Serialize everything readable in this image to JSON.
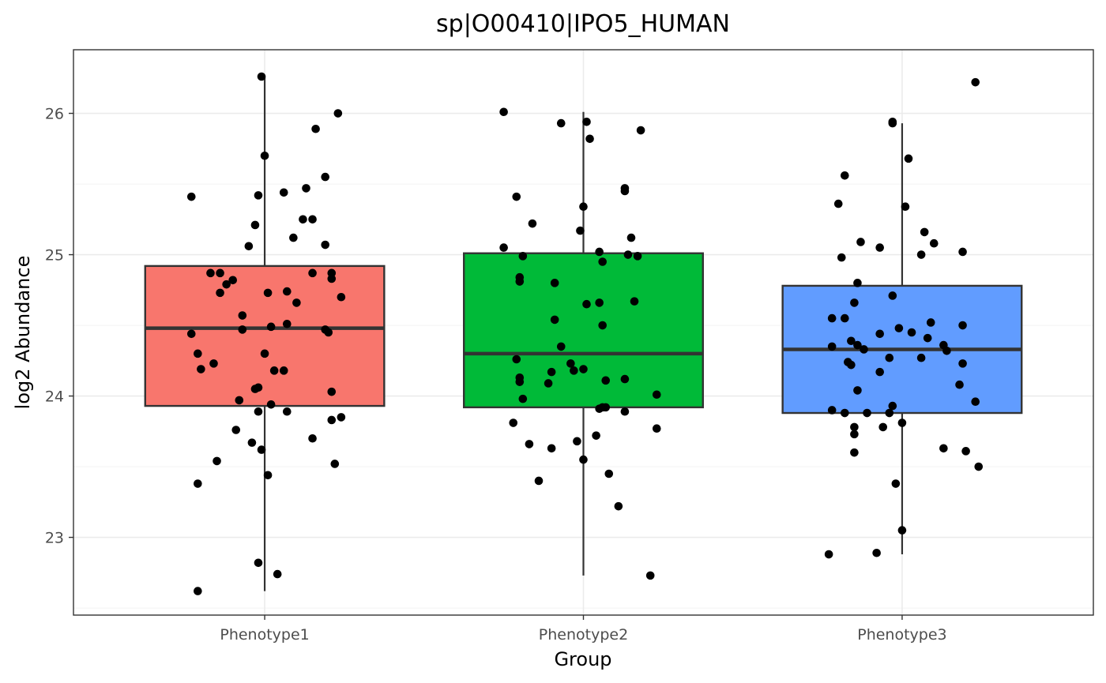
{
  "chart_data": {
    "type": "boxplot",
    "title": "sp|O00410|IPO5_HUMAN",
    "xlabel": "Group",
    "ylabel": "log2 Abundance",
    "categories": [
      "Phenotype1",
      "Phenotype2",
      "Phenotype3"
    ],
    "ylim": [
      22.45,
      26.45
    ],
    "yticks": [
      23,
      24,
      25,
      26
    ],
    "grid": true,
    "legend": "none",
    "colors": {
      "Phenotype1": "#F8766D",
      "Phenotype2": "#00BA38",
      "Phenotype3": "#619CFF"
    },
    "boxes": [
      {
        "category": "Phenotype1",
        "min": 22.62,
        "q1": 23.93,
        "median": 24.48,
        "q3": 24.92,
        "max": 26.26
      },
      {
        "category": "Phenotype2",
        "min": 22.73,
        "q1": 23.92,
        "median": 24.3,
        "q3": 25.01,
        "max": 26.01
      },
      {
        "category": "Phenotype3",
        "min": 22.88,
        "q1": 23.88,
        "median": 24.33,
        "q3": 24.78,
        "max": 25.93
      }
    ],
    "points": [
      {
        "group": 0,
        "x": 0.99,
        "y": 26.26
      },
      {
        "group": 0,
        "x": 1.23,
        "y": 26.0
      },
      {
        "group": 0,
        "x": 1.16,
        "y": 25.89
      },
      {
        "group": 0,
        "x": 1.0,
        "y": 25.7
      },
      {
        "group": 0,
        "x": 1.19,
        "y": 25.55
      },
      {
        "group": 0,
        "x": 1.13,
        "y": 25.47
      },
      {
        "group": 0,
        "x": 1.06,
        "y": 25.44
      },
      {
        "group": 0,
        "x": 0.98,
        "y": 25.42
      },
      {
        "group": 0,
        "x": 0.77,
        "y": 25.41
      },
      {
        "group": 0,
        "x": 1.15,
        "y": 25.25
      },
      {
        "group": 0,
        "x": 1.12,
        "y": 25.25
      },
      {
        "group": 0,
        "x": 0.97,
        "y": 25.21
      },
      {
        "group": 0,
        "x": 1.09,
        "y": 25.12
      },
      {
        "group": 0,
        "x": 1.19,
        "y": 25.07
      },
      {
        "group": 0,
        "x": 0.95,
        "y": 25.06
      },
      {
        "group": 0,
        "x": 0.83,
        "y": 24.87
      },
      {
        "group": 0,
        "x": 0.86,
        "y": 24.87
      },
      {
        "group": 0,
        "x": 1.15,
        "y": 24.87
      },
      {
        "group": 0,
        "x": 1.21,
        "y": 24.87
      },
      {
        "group": 0,
        "x": 0.9,
        "y": 24.82
      },
      {
        "group": 0,
        "x": 1.21,
        "y": 24.83
      },
      {
        "group": 0,
        "x": 0.88,
        "y": 24.79
      },
      {
        "group": 0,
        "x": 1.07,
        "y": 24.74
      },
      {
        "group": 0,
        "x": 0.86,
        "y": 24.73
      },
      {
        "group": 0,
        "x": 1.01,
        "y": 24.73
      },
      {
        "group": 0,
        "x": 1.24,
        "y": 24.7
      },
      {
        "group": 0,
        "x": 1.1,
        "y": 24.66
      },
      {
        "group": 0,
        "x": 0.93,
        "y": 24.57
      },
      {
        "group": 0,
        "x": 1.07,
        "y": 24.51
      },
      {
        "group": 0,
        "x": 1.02,
        "y": 24.49
      },
      {
        "group": 0,
        "x": 1.19,
        "y": 24.47
      },
      {
        "group": 0,
        "x": 0.93,
        "y": 24.47
      },
      {
        "group": 0,
        "x": 1.2,
        "y": 24.45
      },
      {
        "group": 0,
        "x": 0.77,
        "y": 24.44
      },
      {
        "group": 0,
        "x": 1.0,
        "y": 24.3
      },
      {
        "group": 0,
        "x": 0.79,
        "y": 24.3
      },
      {
        "group": 0,
        "x": 0.84,
        "y": 24.23
      },
      {
        "group": 0,
        "x": 0.8,
        "y": 24.19
      },
      {
        "group": 0,
        "x": 1.03,
        "y": 24.18
      },
      {
        "group": 0,
        "x": 1.06,
        "y": 24.18
      },
      {
        "group": 0,
        "x": 0.98,
        "y": 24.06
      },
      {
        "group": 0,
        "x": 0.97,
        "y": 24.05
      },
      {
        "group": 0,
        "x": 1.21,
        "y": 24.03
      },
      {
        "group": 0,
        "x": 0.92,
        "y": 23.97
      },
      {
        "group": 0,
        "x": 1.02,
        "y": 23.94
      },
      {
        "group": 0,
        "x": 0.98,
        "y": 23.89
      },
      {
        "group": 0,
        "x": 1.07,
        "y": 23.89
      },
      {
        "group": 0,
        "x": 1.24,
        "y": 23.85
      },
      {
        "group": 0,
        "x": 1.21,
        "y": 23.83
      },
      {
        "group": 0,
        "x": 0.91,
        "y": 23.76
      },
      {
        "group": 0,
        "x": 1.15,
        "y": 23.7
      },
      {
        "group": 0,
        "x": 0.96,
        "y": 23.67
      },
      {
        "group": 0,
        "x": 0.99,
        "y": 23.62
      },
      {
        "group": 0,
        "x": 0.85,
        "y": 23.54
      },
      {
        "group": 0,
        "x": 1.22,
        "y": 23.52
      },
      {
        "group": 0,
        "x": 1.01,
        "y": 23.44
      },
      {
        "group": 0,
        "x": 0.79,
        "y": 23.38
      },
      {
        "group": 0,
        "x": 0.98,
        "y": 22.82
      },
      {
        "group": 0,
        "x": 1.04,
        "y": 22.74
      },
      {
        "group": 0,
        "x": 0.79,
        "y": 22.62
      },
      {
        "group": 1,
        "x": 1.75,
        "y": 26.01
      },
      {
        "group": 1,
        "x": 2.01,
        "y": 25.94
      },
      {
        "group": 1,
        "x": 1.93,
        "y": 25.93
      },
      {
        "group": 1,
        "x": 2.18,
        "y": 25.88
      },
      {
        "group": 1,
        "x": 2.02,
        "y": 25.82
      },
      {
        "group": 1,
        "x": 2.13,
        "y": 25.47
      },
      {
        "group": 1,
        "x": 2.13,
        "y": 25.45
      },
      {
        "group": 1,
        "x": 1.79,
        "y": 25.41
      },
      {
        "group": 1,
        "x": 2.0,
        "y": 25.34
      },
      {
        "group": 1,
        "x": 1.84,
        "y": 25.22
      },
      {
        "group": 1,
        "x": 1.99,
        "y": 25.17
      },
      {
        "group": 1,
        "x": 2.15,
        "y": 25.12
      },
      {
        "group": 1,
        "x": 1.75,
        "y": 25.05
      },
      {
        "group": 1,
        "x": 2.05,
        "y": 25.02
      },
      {
        "group": 1,
        "x": 2.14,
        "y": 25.0
      },
      {
        "group": 1,
        "x": 2.17,
        "y": 24.99
      },
      {
        "group": 1,
        "x": 1.81,
        "y": 24.99
      },
      {
        "group": 1,
        "x": 2.06,
        "y": 24.95
      },
      {
        "group": 1,
        "x": 1.8,
        "y": 24.84
      },
      {
        "group": 1,
        "x": 1.8,
        "y": 24.81
      },
      {
        "group": 1,
        "x": 1.91,
        "y": 24.8
      },
      {
        "group": 1,
        "x": 2.16,
        "y": 24.67
      },
      {
        "group": 1,
        "x": 2.05,
        "y": 24.66
      },
      {
        "group": 1,
        "x": 2.01,
        "y": 24.65
      },
      {
        "group": 1,
        "x": 1.91,
        "y": 24.54
      },
      {
        "group": 1,
        "x": 2.06,
        "y": 24.5
      },
      {
        "group": 1,
        "x": 1.93,
        "y": 24.35
      },
      {
        "group": 1,
        "x": 1.79,
        "y": 24.26
      },
      {
        "group": 1,
        "x": 1.96,
        "y": 24.23
      },
      {
        "group": 1,
        "x": 2.0,
        "y": 24.19
      },
      {
        "group": 1,
        "x": 1.97,
        "y": 24.18
      },
      {
        "group": 1,
        "x": 1.9,
        "y": 24.17
      },
      {
        "group": 1,
        "x": 1.8,
        "y": 24.13
      },
      {
        "group": 1,
        "x": 2.13,
        "y": 24.12
      },
      {
        "group": 1,
        "x": 2.07,
        "y": 24.11
      },
      {
        "group": 1,
        "x": 1.8,
        "y": 24.1
      },
      {
        "group": 1,
        "x": 1.89,
        "y": 24.09
      },
      {
        "group": 1,
        "x": 2.23,
        "y": 24.01
      },
      {
        "group": 1,
        "x": 1.81,
        "y": 23.98
      },
      {
        "group": 1,
        "x": 2.07,
        "y": 23.92
      },
      {
        "group": 1,
        "x": 2.06,
        "y": 23.92
      },
      {
        "group": 1,
        "x": 2.05,
        "y": 23.91
      },
      {
        "group": 1,
        "x": 2.13,
        "y": 23.89
      },
      {
        "group": 1,
        "x": 1.78,
        "y": 23.81
      },
      {
        "group": 1,
        "x": 2.23,
        "y": 23.77
      },
      {
        "group": 1,
        "x": 2.04,
        "y": 23.72
      },
      {
        "group": 1,
        "x": 1.98,
        "y": 23.68
      },
      {
        "group": 1,
        "x": 1.83,
        "y": 23.66
      },
      {
        "group": 1,
        "x": 1.9,
        "y": 23.63
      },
      {
        "group": 1,
        "x": 2.0,
        "y": 23.55
      },
      {
        "group": 1,
        "x": 2.08,
        "y": 23.45
      },
      {
        "group": 1,
        "x": 1.86,
        "y": 23.4
      },
      {
        "group": 1,
        "x": 2.11,
        "y": 23.22
      },
      {
        "group": 1,
        "x": 2.21,
        "y": 22.73
      },
      {
        "group": 2,
        "x": 3.23,
        "y": 26.22
      },
      {
        "group": 2,
        "x": 2.97,
        "y": 25.94
      },
      {
        "group": 2,
        "x": 2.97,
        "y": 25.93
      },
      {
        "group": 2,
        "x": 3.02,
        "y": 25.68
      },
      {
        "group": 2,
        "x": 2.82,
        "y": 25.56
      },
      {
        "group": 2,
        "x": 2.8,
        "y": 25.36
      },
      {
        "group": 2,
        "x": 3.01,
        "y": 25.34
      },
      {
        "group": 2,
        "x": 3.07,
        "y": 25.16
      },
      {
        "group": 2,
        "x": 2.87,
        "y": 25.09
      },
      {
        "group": 2,
        "x": 3.1,
        "y": 25.08
      },
      {
        "group": 2,
        "x": 2.93,
        "y": 25.05
      },
      {
        "group": 2,
        "x": 3.19,
        "y": 25.02
      },
      {
        "group": 2,
        "x": 3.06,
        "y": 25.0
      },
      {
        "group": 2,
        "x": 2.81,
        "y": 24.98
      },
      {
        "group": 2,
        "x": 2.86,
        "y": 24.8
      },
      {
        "group": 2,
        "x": 2.97,
        "y": 24.71
      },
      {
        "group": 2,
        "x": 2.85,
        "y": 24.66
      },
      {
        "group": 2,
        "x": 2.78,
        "y": 24.55
      },
      {
        "group": 2,
        "x": 2.82,
        "y": 24.55
      },
      {
        "group": 2,
        "x": 3.09,
        "y": 24.52
      },
      {
        "group": 2,
        "x": 3.19,
        "y": 24.5
      },
      {
        "group": 2,
        "x": 2.99,
        "y": 24.48
      },
      {
        "group": 2,
        "x": 3.03,
        "y": 24.45
      },
      {
        "group": 2,
        "x": 2.93,
        "y": 24.44
      },
      {
        "group": 2,
        "x": 3.08,
        "y": 24.41
      },
      {
        "group": 2,
        "x": 2.84,
        "y": 24.39
      },
      {
        "group": 2,
        "x": 2.86,
        "y": 24.36
      },
      {
        "group": 2,
        "x": 3.13,
        "y": 24.36
      },
      {
        "group": 2,
        "x": 2.78,
        "y": 24.35
      },
      {
        "group": 2,
        "x": 2.88,
        "y": 24.33
      },
      {
        "group": 2,
        "x": 3.14,
        "y": 24.32
      },
      {
        "group": 2,
        "x": 2.96,
        "y": 24.27
      },
      {
        "group": 2,
        "x": 3.06,
        "y": 24.27
      },
      {
        "group": 2,
        "x": 2.83,
        "y": 24.24
      },
      {
        "group": 2,
        "x": 2.84,
        "y": 24.22
      },
      {
        "group": 2,
        "x": 3.19,
        "y": 24.23
      },
      {
        "group": 2,
        "x": 2.93,
        "y": 24.17
      },
      {
        "group": 2,
        "x": 3.18,
        "y": 24.08
      },
      {
        "group": 2,
        "x": 2.86,
        "y": 24.04
      },
      {
        "group": 2,
        "x": 3.23,
        "y": 23.96
      },
      {
        "group": 2,
        "x": 2.97,
        "y": 23.93
      },
      {
        "group": 2,
        "x": 2.78,
        "y": 23.9
      },
      {
        "group": 2,
        "x": 2.82,
        "y": 23.88
      },
      {
        "group": 2,
        "x": 2.89,
        "y": 23.88
      },
      {
        "group": 2,
        "x": 2.96,
        "y": 23.88
      },
      {
        "group": 2,
        "x": 2.85,
        "y": 23.78
      },
      {
        "group": 2,
        "x": 2.94,
        "y": 23.78
      },
      {
        "group": 2,
        "x": 3.0,
        "y": 23.81
      },
      {
        "group": 2,
        "x": 2.85,
        "y": 23.73
      },
      {
        "group": 2,
        "x": 3.13,
        "y": 23.63
      },
      {
        "group": 2,
        "x": 3.2,
        "y": 23.61
      },
      {
        "group": 2,
        "x": 2.85,
        "y": 23.6
      },
      {
        "group": 2,
        "x": 3.24,
        "y": 23.5
      },
      {
        "group": 2,
        "x": 2.98,
        "y": 23.38
      },
      {
        "group": 2,
        "x": 3.0,
        "y": 23.05
      },
      {
        "group": 2,
        "x": 2.77,
        "y": 22.88
      },
      {
        "group": 2,
        "x": 2.92,
        "y": 22.89
      }
    ]
  }
}
